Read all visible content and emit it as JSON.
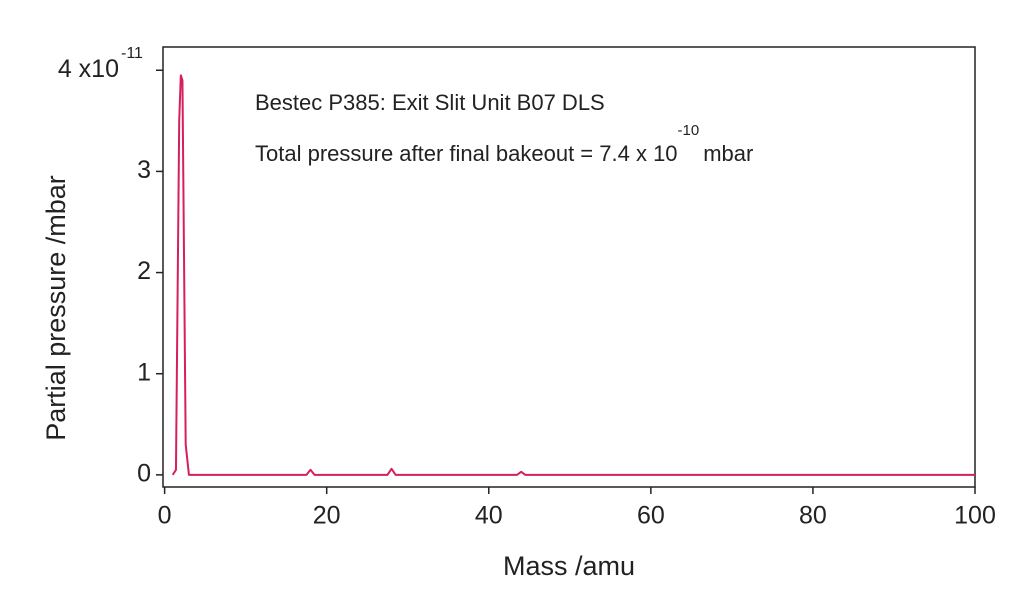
{
  "chart_data": {
    "type": "line",
    "x_label": "Mass /amu",
    "y_label": "Partial pressure /mbar",
    "y_multiplier_exponent": "-11",
    "annotations": {
      "title_line": "Bestec P385: Exit Slit Unit B07 DLS",
      "pressure_text": "Total pressure after final bakeout =  7.4 x 10",
      "pressure_exponent": "-10",
      "pressure_unit": "mbar"
    },
    "x": [
      1,
      1.4,
      1.8,
      2.0,
      2.2,
      2.6,
      3,
      10,
      17.5,
      18,
      18.5,
      27.5,
      28,
      28.5,
      43.5,
      44,
      44.5,
      100
    ],
    "series": [
      {
        "color": "#d61f5c",
        "values": [
          0,
          0.05,
          3.5,
          3.95,
          3.9,
          0.3,
          0,
          0,
          0,
          0.05,
          0,
          0,
          0.06,
          0,
          0,
          0.03,
          0,
          0
        ]
      }
    ],
    "xlim": [
      -0.2,
      100
    ],
    "ylim": [
      -0.12,
      4.23
    ],
    "xticks": [
      0,
      20,
      40,
      60,
      80,
      100
    ],
    "yticks": [
      0,
      1,
      2,
      3,
      {
        "value": 4,
        "label": "4 x10"
      }
    ]
  }
}
